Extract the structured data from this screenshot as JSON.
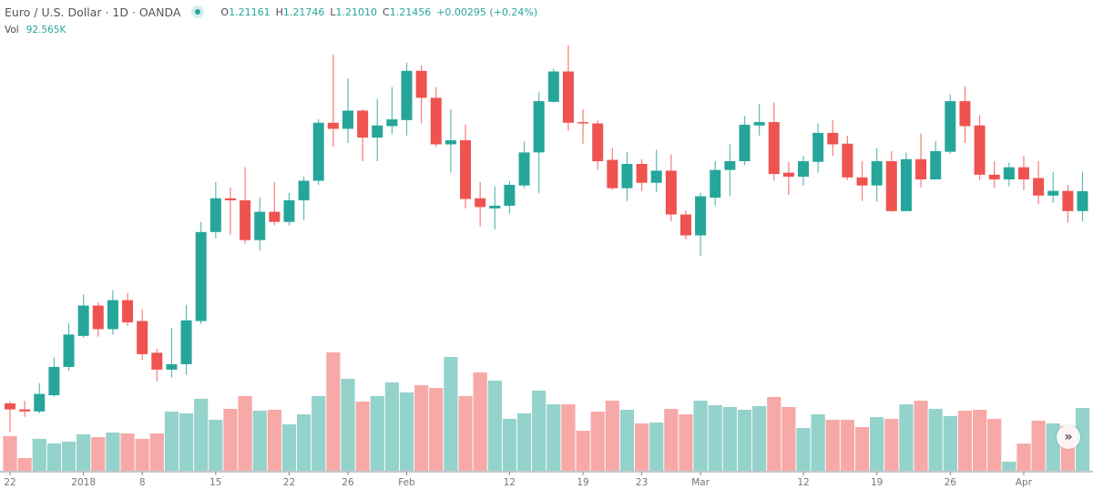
{
  "header": {
    "title": "Euro / U.S. Dollar · 1D · OANDA",
    "ohlc": [
      {
        "label": "O",
        "value": "1.21161"
      },
      {
        "label": "H",
        "value": "1.21746"
      },
      {
        "label": "L",
        "value": "1.21010"
      },
      {
        "label": "C",
        "value": "1.21456"
      }
    ],
    "change": "+0.00295 (+0.24%)",
    "vol_label": "Vol",
    "vol_value": "92.565K"
  },
  "scroll_button": {
    "icon": "double-chevron-right-icon",
    "label": "»"
  },
  "chart_data": {
    "type": "candlestick",
    "title": "",
    "xlabel": "",
    "ylabel": "",
    "grid": false,
    "ylim": [
      1.1704,
      1.2429
    ],
    "colors": {
      "up": "#26a69a",
      "down": "#ef5350",
      "volume_up": "#94d2cc",
      "volume_down": "#f7a9a7",
      "axis": "#b2b5be"
    },
    "candle_fields": [
      "open",
      "high",
      "low",
      "close"
    ],
    "candles": [
      [
        1.1831,
        1.1834,
        1.1788,
        1.1822
      ],
      [
        1.1822,
        1.1835,
        1.1811,
        1.1819
      ],
      [
        1.1819,
        1.1861,
        1.1816,
        1.1845
      ],
      [
        1.1843,
        1.1899,
        1.1841,
        1.1885
      ],
      [
        1.1885,
        1.195,
        1.1879,
        1.1933
      ],
      [
        1.1931,
        1.1993,
        1.1928,
        1.1976
      ],
      [
        1.1976,
        1.1981,
        1.193,
        1.1941
      ],
      [
        1.1941,
        1.1999,
        1.1933,
        1.1984
      ],
      [
        1.1984,
        1.1995,
        1.1946,
        1.1951
      ],
      [
        1.1953,
        1.197,
        1.1895,
        1.1904
      ],
      [
        1.1906,
        1.1912,
        1.1864,
        1.1881
      ],
      [
        1.1881,
        1.1943,
        1.1869,
        1.1889
      ],
      [
        1.1889,
        1.1977,
        1.1873,
        1.1954
      ],
      [
        1.1953,
        1.21,
        1.1949,
        1.2085
      ],
      [
        1.2085,
        1.2159,
        1.2076,
        1.2135
      ],
      [
        1.2135,
        1.2151,
        1.2081,
        1.2132
      ],
      [
        1.2132,
        1.2181,
        1.2068,
        1.2073
      ],
      [
        1.2073,
        1.2136,
        1.2058,
        1.2115
      ],
      [
        1.2115,
        1.2159,
        1.2095,
        1.21
      ],
      [
        1.21,
        1.2143,
        1.2095,
        1.2132
      ],
      [
        1.2132,
        1.2167,
        1.2103,
        1.2161
      ],
      [
        1.2161,
        1.2252,
        1.2155,
        1.2247
      ],
      [
        1.2247,
        1.2348,
        1.2211,
        1.2238
      ],
      [
        1.2238,
        1.2313,
        1.2217,
        1.2265
      ],
      [
        1.2265,
        1.2267,
        1.219,
        1.2225
      ],
      [
        1.2225,
        1.2282,
        1.219,
        1.2243
      ],
      [
        1.2242,
        1.23,
        1.223,
        1.2252
      ],
      [
        1.2251,
        1.2336,
        1.2228,
        1.2324
      ],
      [
        1.2324,
        1.2332,
        1.2246,
        1.2284
      ],
      [
        1.2284,
        1.23,
        1.2211,
        1.2215
      ],
      [
        1.2215,
        1.2267,
        1.2173,
        1.2221
      ],
      [
        1.2221,
        1.2244,
        1.212,
        1.2134
      ],
      [
        1.2135,
        1.2159,
        1.2093,
        1.2122
      ],
      [
        1.212,
        1.2153,
        1.2089,
        1.2124
      ],
      [
        1.2124,
        1.2161,
        1.2112,
        1.2155
      ],
      [
        1.2154,
        1.2219,
        1.215,
        1.2203
      ],
      [
        1.2203,
        1.2292,
        1.2143,
        1.2279
      ],
      [
        1.2278,
        1.2327,
        1.2277,
        1.2323
      ],
      [
        1.2323,
        1.2362,
        1.2235,
        1.2247
      ],
      [
        1.2248,
        1.2267,
        1.2216,
        1.2246
      ],
      [
        1.2246,
        1.2251,
        1.2177,
        1.219
      ],
      [
        1.2192,
        1.2209,
        1.2147,
        1.215
      ],
      [
        1.215,
        1.2204,
        1.2131,
        1.2186
      ],
      [
        1.2186,
        1.2193,
        1.2146,
        1.2158
      ],
      [
        1.2158,
        1.2207,
        1.2144,
        1.2176
      ],
      [
        1.2176,
        1.22,
        1.2101,
        1.2111
      ],
      [
        1.2111,
        1.2117,
        1.2074,
        1.208
      ],
      [
        1.208,
        1.2143,
        1.2049,
        1.2138
      ],
      [
        1.2136,
        1.219,
        1.2124,
        1.2177
      ],
      [
        1.2177,
        1.2215,
        1.2139,
        1.219
      ],
      [
        1.219,
        1.2257,
        1.2184,
        1.2244
      ],
      [
        1.2243,
        1.2275,
        1.2228,
        1.2248
      ],
      [
        1.2248,
        1.2277,
        1.2161,
        1.2171
      ],
      [
        1.2173,
        1.2189,
        1.214,
        1.2167
      ],
      [
        1.2167,
        1.2198,
        1.2154,
        1.219
      ],
      [
        1.2189,
        1.2246,
        1.2173,
        1.2232
      ],
      [
        1.2232,
        1.2251,
        1.2198,
        1.2215
      ],
      [
        1.2216,
        1.2228,
        1.2162,
        1.2166
      ],
      [
        1.2166,
        1.219,
        1.2131,
        1.2154
      ],
      [
        1.2154,
        1.2209,
        1.213,
        1.219
      ],
      [
        1.219,
        1.2205,
        1.2115,
        1.2116
      ],
      [
        1.2116,
        1.2203,
        1.2116,
        1.2193
      ],
      [
        1.2193,
        1.2231,
        1.2151,
        1.2163
      ],
      [
        1.2163,
        1.222,
        1.2163,
        1.2205
      ],
      [
        1.2204,
        1.2289,
        1.2201,
        1.2279
      ],
      [
        1.2279,
        1.2301,
        1.2217,
        1.2242
      ],
      [
        1.2243,
        1.2258,
        1.2162,
        1.217
      ],
      [
        1.217,
        1.219,
        1.215,
        1.2163
      ],
      [
        1.2163,
        1.2188,
        1.2153,
        1.2181
      ],
      [
        1.2181,
        1.2198,
        1.2147,
        1.2163
      ],
      [
        1.2165,
        1.219,
        1.2126,
        1.2139
      ],
      [
        1.2139,
        1.2174,
        1.2128,
        1.2146
      ],
      [
        1.2146,
        1.2155,
        1.2099,
        1.2116
      ],
      [
        1.21161,
        1.21746,
        1.2101,
        1.21456
      ]
    ],
    "volume_unit": "K",
    "volume": [
      51.0,
      18.8,
      47.0,
      40.2,
      42.9,
      53.7,
      49.6,
      56.3,
      55.0,
      47.0,
      55.0,
      87.2,
      84.5,
      106.0,
      75.1,
      91.2,
      110.0,
      88.5,
      89.9,
      68.4,
      83.2,
      110.0,
      174.4,
      135.5,
      102.0,
      110.0,
      130.1,
      115.4,
      126.1,
      122.1,
      167.7,
      110.0,
      144.9,
      132.8,
      76.5,
      84.5,
      118.1,
      97.9,
      97.9,
      59.0,
      87.2,
      103.3,
      89.9,
      69.8,
      71.1,
      91.2,
      83.2,
      103.3,
      96.6,
      93.9,
      89.9,
      95.2,
      108.7,
      93.9,
      63.1,
      83.2,
      75.1,
      75.1,
      64.4,
      79.1,
      76.5,
      97.9,
      103.3,
      91.2,
      80.5,
      88.5,
      89.9,
      76.5,
      13.4,
      40.2,
      73.8,
      69.8,
      65.7,
      92.565
    ],
    "x_ticks": [
      {
        "label": "22",
        "index": 0
      },
      {
        "label": "2018",
        "index": 5
      },
      {
        "label": "8",
        "index": 9
      },
      {
        "label": "15",
        "index": 14
      },
      {
        "label": "22",
        "index": 19
      },
      {
        "label": "26",
        "index": 23
      },
      {
        "label": "Feb",
        "index": 27
      },
      {
        "label": "12",
        "index": 34
      },
      {
        "label": "19",
        "index": 39
      },
      {
        "label": "23",
        "index": 43
      },
      {
        "label": "Mar",
        "index": 47
      },
      {
        "label": "12",
        "index": 54
      },
      {
        "label": "19",
        "index": 59
      },
      {
        "label": "26",
        "index": 64
      },
      {
        "label": "Apr",
        "index": 69
      }
    ]
  }
}
